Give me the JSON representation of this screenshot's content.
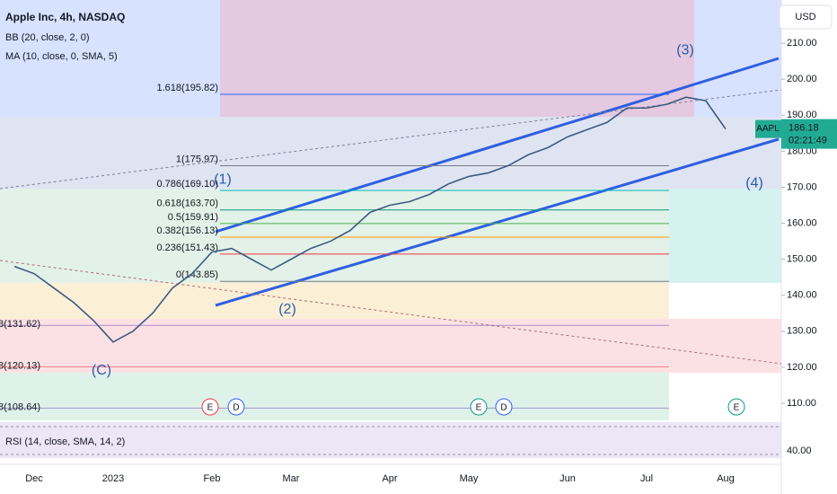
{
  "chart_data": {
    "type": "line",
    "title": "Apple Inc, 4h, NASDAQ",
    "indicators": [
      "BB (20, close, 2, 0)",
      "MA (10, close, 0, SMA, 5)"
    ],
    "currency": "USD",
    "categories": [
      null,
      "Dec",
      null,
      null,
      null,
      "2023",
      null,
      null,
      null,
      null,
      "Feb",
      null,
      null,
      null,
      "Mar",
      null,
      null,
      null,
      null,
      "Apr",
      null,
      null,
      null,
      "May",
      null,
      null,
      null,
      null,
      "Jun",
      null,
      null,
      null,
      "Jul",
      null,
      null,
      null,
      "Aug"
    ],
    "series": [
      {
        "name": "AAPL",
        "color": "#3d5a80",
        "values": [
          148,
          146,
          142,
          138,
          133,
          127,
          130,
          135,
          142,
          146,
          152,
          153,
          150,
          147,
          150,
          153,
          155,
          158,
          163,
          165,
          166,
          168,
          171,
          173,
          174,
          176,
          179,
          181,
          184,
          186,
          188,
          192,
          192,
          193,
          195,
          194,
          186.18
        ]
      }
    ],
    "ylim": [
      106,
      222
    ],
    "yticks": [
      {
        "value": 110,
        "label": "110.00"
      },
      {
        "value": 120,
        "label": "120.00"
      },
      {
        "value": 130,
        "label": "130.00"
      },
      {
        "value": 140,
        "label": "140.00"
      },
      {
        "value": 150,
        "label": "150.00"
      },
      {
        "value": 160,
        "label": "160.00"
      },
      {
        "value": 170,
        "label": "170.00"
      },
      {
        "value": 180,
        "label": "180.00"
      },
      {
        "value": 190,
        "label": "190.00"
      },
      {
        "value": 200,
        "label": "200.00"
      },
      {
        "value": 210,
        "label": "210.00"
      }
    ],
    "last_price": {
      "symbol": "AAPL",
      "value": 186.18,
      "countdown": "02:21:49"
    },
    "fib_levels": [
      {
        "label": "1.618(195.82)",
        "value": 195.82,
        "color": "#2962ff"
      },
      {
        "label": "1(175.97)",
        "value": 175.97,
        "color": "#787b86"
      },
      {
        "label": "0.786(169.10)",
        "value": 169.1,
        "color": "#00acc1"
      },
      {
        "label": "0.618(163.70)",
        "value": 163.7,
        "color": "#089981"
      },
      {
        "label": "0.5(159.91)",
        "value": 159.91,
        "color": "#4caf50"
      },
      {
        "label": "0.382(156.13)",
        "value": 156.13,
        "color": "#ff9800"
      },
      {
        "label": "0.236(151.43)",
        "value": 151.43,
        "color": "#f23645"
      },
      {
        "label": "0(143.85)",
        "value": 143.85,
        "color": "#787b86"
      }
    ],
    "left_fib_labels": [
      {
        "label": "8(131.62)",
        "value": 131.62,
        "color": "#7e57c2"
      },
      {
        "label": "8(120.13)",
        "value": 120.13,
        "color": "#f23645"
      },
      {
        "label": "8(108.64)",
        "value": 108.64,
        "color": "#7e57c2"
      }
    ],
    "waves": [
      {
        "label": "(C)",
        "value": 119
      },
      {
        "label": "(1)",
        "value": 172
      },
      {
        "label": "(2)",
        "value": 136
      },
      {
        "label": "(3)",
        "value": 208
      },
      {
        "label": "(4)",
        "value": 171
      }
    ],
    "events": [
      "E",
      "D",
      "E",
      "D",
      "E"
    ],
    "rsi": {
      "title": "RSI (14, close, SMA, 14, 2)",
      "tick": "40.00"
    }
  }
}
